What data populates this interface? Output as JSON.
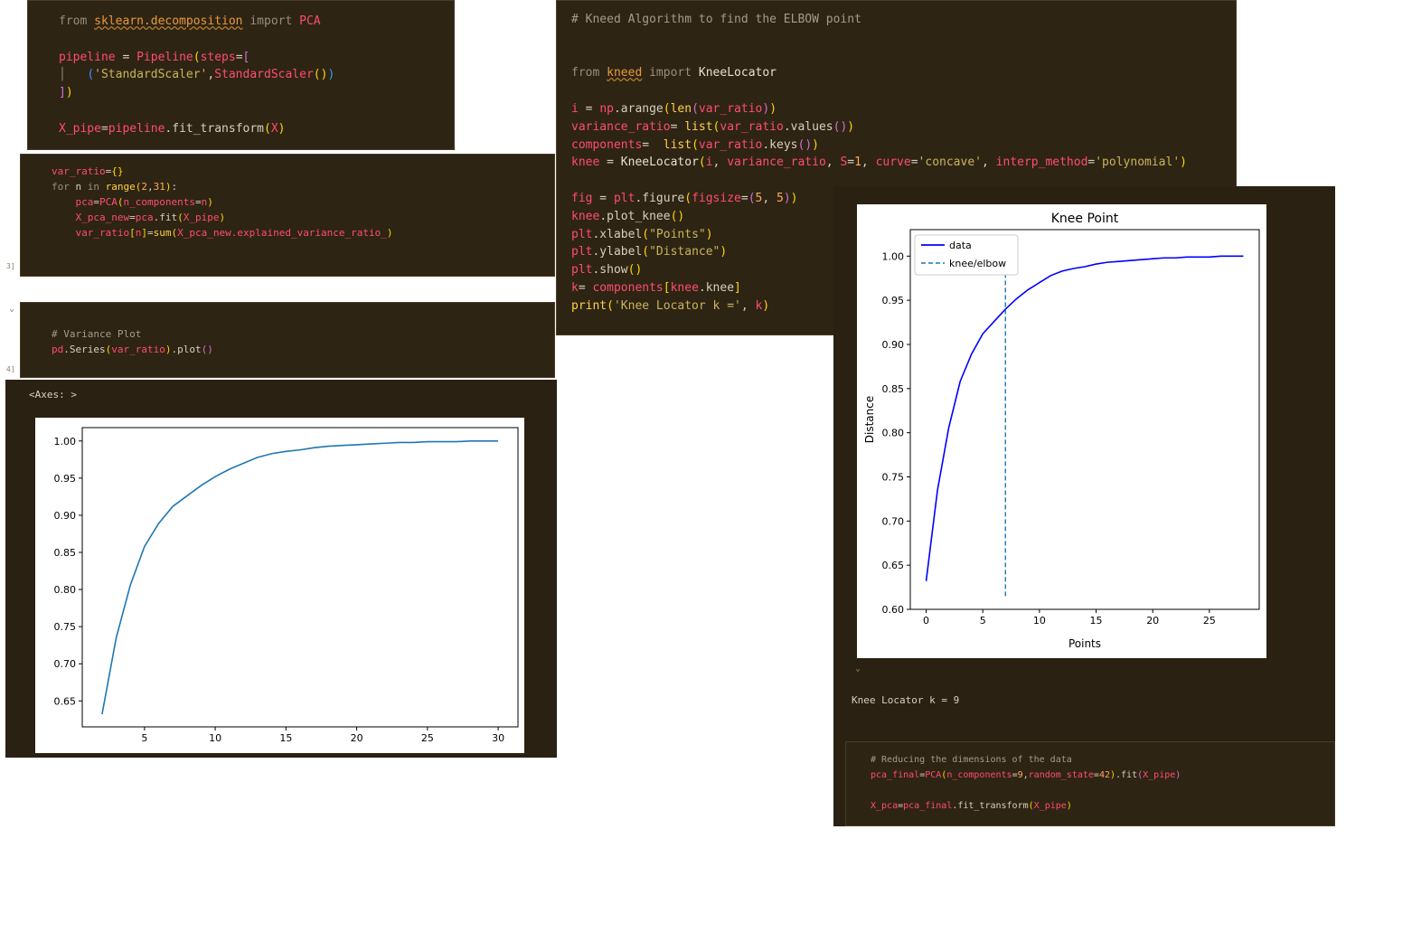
{
  "cells": {
    "pca_import": [
      [
        [
          "from ",
          "kw"
        ],
        [
          "sklearn.decomposition",
          "mod"
        ],
        [
          " import ",
          "kw"
        ],
        [
          "PCA",
          "var"
        ]
      ],
      [],
      [
        [
          "pipeline",
          "var"
        ],
        [
          " = ",
          "plain"
        ],
        [
          "Pipeline",
          "var"
        ],
        [
          "(",
          "br1"
        ],
        [
          "steps",
          "var"
        ],
        [
          "=",
          "plain"
        ],
        [
          "[",
          "br2"
        ]
      ],
      [
        [
          "│   ",
          "kw"
        ],
        [
          "(",
          "br3"
        ],
        [
          "'StandardScaler'",
          "str"
        ],
        [
          ",",
          "plain"
        ],
        [
          "StandardScaler",
          "var"
        ],
        [
          "(",
          "br1"
        ],
        [
          ")",
          "br1"
        ],
        [
          ")",
          "br3"
        ]
      ],
      [
        [
          "]",
          "br2"
        ],
        [
          ")",
          "br1"
        ]
      ],
      [],
      [
        [
          "X_pipe",
          "var"
        ],
        [
          "=",
          "plain"
        ],
        [
          "pipeline",
          "var"
        ],
        [
          ".fit_transform",
          "plain"
        ],
        [
          "(",
          "br1"
        ],
        [
          "X",
          "var"
        ],
        [
          ")",
          "br1"
        ]
      ]
    ],
    "var_ratio_loop": [
      [
        [
          "var_ratio",
          "var"
        ],
        [
          "=",
          "plain"
        ],
        [
          "{}",
          "br1"
        ]
      ],
      [
        [
          "for ",
          "kw"
        ],
        [
          "n ",
          "plain"
        ],
        [
          "in ",
          "kw"
        ],
        [
          "range",
          "fn"
        ],
        [
          "(",
          "br1"
        ],
        [
          "2",
          "num"
        ],
        [
          ",",
          "plain"
        ],
        [
          "31",
          "num"
        ],
        [
          ")",
          "br1"
        ],
        [
          ":",
          "plain"
        ]
      ],
      [
        [
          "    ",
          "plain"
        ],
        [
          "pca",
          "var"
        ],
        [
          "=",
          "plain"
        ],
        [
          "PCA",
          "var"
        ],
        [
          "(",
          "br1"
        ],
        [
          "n_components",
          "var"
        ],
        [
          "=",
          "plain"
        ],
        [
          "n",
          "var"
        ],
        [
          ")",
          "br1"
        ]
      ],
      [
        [
          "    ",
          "plain"
        ],
        [
          "X_pca_new",
          "var"
        ],
        [
          "=",
          "plain"
        ],
        [
          "pca",
          "var"
        ],
        [
          ".fit",
          "plain"
        ],
        [
          "(",
          "br1"
        ],
        [
          "X_pipe",
          "var"
        ],
        [
          ")",
          "br1"
        ]
      ],
      [
        [
          "    ",
          "plain"
        ],
        [
          "var_ratio",
          "var"
        ],
        [
          "[",
          "br1"
        ],
        [
          "n",
          "var"
        ],
        [
          "]",
          "br1"
        ],
        [
          "=",
          "plain"
        ],
        [
          "sum",
          "fn"
        ],
        [
          "(",
          "br1"
        ],
        [
          "X_pca_new",
          "var"
        ],
        [
          ".explained_variance_ratio_",
          "var"
        ],
        [
          ")",
          "br1"
        ]
      ]
    ],
    "kneed": [
      [
        [
          "# Kneed Algorithm to find the ELBOW point",
          "cmt"
        ]
      ],
      [],
      [],
      [
        [
          "from ",
          "kw"
        ],
        [
          "kneed",
          "mod"
        ],
        [
          " import ",
          "kw"
        ],
        [
          "KneeLocator",
          "pm"
        ]
      ],
      [],
      [
        [
          "i",
          "var"
        ],
        [
          " = ",
          "plain"
        ],
        [
          "np",
          "var"
        ],
        [
          ".arange",
          "plain"
        ],
        [
          "(",
          "br1"
        ],
        [
          "len",
          "fn"
        ],
        [
          "(",
          "br2"
        ],
        [
          "var_ratio",
          "var"
        ],
        [
          ")",
          "br2"
        ],
        [
          ")",
          "br1"
        ]
      ],
      [
        [
          "variance_ratio",
          "var"
        ],
        [
          "= ",
          "plain"
        ],
        [
          "list",
          "fn"
        ],
        [
          "(",
          "br1"
        ],
        [
          "var_ratio",
          "var"
        ],
        [
          ".values",
          "plain"
        ],
        [
          "(",
          "br2"
        ],
        [
          ")",
          "br2"
        ],
        [
          ")",
          "br1"
        ]
      ],
      [
        [
          "components",
          "var"
        ],
        [
          "=  ",
          "plain"
        ],
        [
          "list",
          "fn"
        ],
        [
          "(",
          "br1"
        ],
        [
          "var_ratio",
          "var"
        ],
        [
          ".keys",
          "plain"
        ],
        [
          "(",
          "br2"
        ],
        [
          ")",
          "br2"
        ],
        [
          ")",
          "br1"
        ]
      ],
      [
        [
          "knee",
          "var"
        ],
        [
          " = ",
          "plain"
        ],
        [
          "KneeLocator",
          "pm"
        ],
        [
          "(",
          "br1"
        ],
        [
          "i",
          "var"
        ],
        [
          ", ",
          "plain"
        ],
        [
          "variance_ratio",
          "var"
        ],
        [
          ", ",
          "plain"
        ],
        [
          "S",
          "var"
        ],
        [
          "=",
          "plain"
        ],
        [
          "1",
          "num"
        ],
        [
          ", ",
          "plain"
        ],
        [
          "curve",
          "var"
        ],
        [
          "=",
          "plain"
        ],
        [
          "'concave'",
          "str"
        ],
        [
          ", ",
          "plain"
        ],
        [
          "interp_method",
          "var"
        ],
        [
          "=",
          "plain"
        ],
        [
          "'polynomial'",
          "str"
        ],
        [
          ")",
          "br1"
        ]
      ],
      [],
      [
        [
          "fig",
          "var"
        ],
        [
          " = ",
          "plain"
        ],
        [
          "plt",
          "var"
        ],
        [
          ".figure",
          "plain"
        ],
        [
          "(",
          "br1"
        ],
        [
          "figsize",
          "var"
        ],
        [
          "=",
          "plain"
        ],
        [
          "(",
          "br2"
        ],
        [
          "5",
          "num"
        ],
        [
          ", ",
          "plain"
        ],
        [
          "5",
          "num"
        ],
        [
          ")",
          "br2"
        ],
        [
          ")",
          "br1"
        ]
      ],
      [
        [
          "knee",
          "var"
        ],
        [
          ".plot_knee",
          "plain"
        ],
        [
          "(",
          "br1"
        ],
        [
          ")",
          "br1"
        ]
      ],
      [
        [
          "plt",
          "var"
        ],
        [
          ".xlabel",
          "plain"
        ],
        [
          "(",
          "br1"
        ],
        [
          "\"Points\"",
          "str"
        ],
        [
          ")",
          "br1"
        ]
      ],
      [
        [
          "plt",
          "var"
        ],
        [
          ".ylabel",
          "plain"
        ],
        [
          "(",
          "br1"
        ],
        [
          "\"Distance\"",
          "str"
        ],
        [
          ")",
          "br1"
        ]
      ],
      [
        [
          "plt",
          "var"
        ],
        [
          ".show",
          "plain"
        ],
        [
          "(",
          "br1"
        ],
        [
          ")",
          "br1"
        ]
      ],
      [
        [
          "k",
          "var"
        ],
        [
          "= ",
          "plain"
        ],
        [
          "components",
          "var"
        ],
        [
          "[",
          "br1"
        ],
        [
          "knee",
          "var"
        ],
        [
          ".knee",
          "plain"
        ],
        [
          "]",
          "br1"
        ]
      ],
      [
        [
          "print",
          "fn"
        ],
        [
          "(",
          "br1"
        ],
        [
          "'Knee Locator k ='",
          "str"
        ],
        [
          ", ",
          "plain"
        ],
        [
          "k",
          "var"
        ],
        [
          ")",
          "br1"
        ]
      ]
    ],
    "variance_plot": [
      [
        [
          "# Variance Plot",
          "cmt"
        ]
      ],
      [
        [
          "pd",
          "var"
        ],
        [
          ".Series",
          "plain"
        ],
        [
          "(",
          "br1"
        ],
        [
          "var_ratio",
          "var"
        ],
        [
          ")",
          "br1"
        ],
        [
          ".plot",
          "plain"
        ],
        [
          "(",
          "br2"
        ],
        [
          ")",
          "br2"
        ]
      ]
    ],
    "reduce": [
      [
        [
          "# Reducing the dimensions of the data",
          "cmt"
        ]
      ],
      [
        [
          "pca_final",
          "var"
        ],
        [
          "=",
          "plain"
        ],
        [
          "PCA",
          "var"
        ],
        [
          "(",
          "br1"
        ],
        [
          "n_components",
          "var"
        ],
        [
          "=",
          "plain"
        ],
        [
          "9",
          "num"
        ],
        [
          ",",
          "plain"
        ],
        [
          "random_state",
          "var"
        ],
        [
          "=",
          "plain"
        ],
        [
          "42",
          "num"
        ],
        [
          ")",
          "br1"
        ],
        [
          ".fit",
          "plain"
        ],
        [
          "(",
          "br2"
        ],
        [
          "X_pipe",
          "var"
        ],
        [
          ")",
          "br2"
        ]
      ],
      [],
      [
        [
          "X_pca",
          "var"
        ],
        [
          "=",
          "plain"
        ],
        [
          "pca_final",
          "var"
        ],
        [
          ".fit_transform",
          "plain"
        ],
        [
          "(",
          "br1"
        ],
        [
          "X_pipe",
          "var"
        ],
        [
          ")",
          "br1"
        ]
      ]
    ]
  },
  "outputs": {
    "axes_repr": "<Axes: >",
    "knee_locator": "Knee Locator k = 9"
  },
  "gutter_marks": {
    "var_loop": "3]",
    "variance": "4]",
    "chevron": "⌄",
    "tick": "⌄"
  },
  "colors": {
    "cell_bg": "#2e2414",
    "variable": "#ff4d6d",
    "function": "#ffd24a",
    "string": "#c9b45a",
    "comment": "#a89b86",
    "keyword": "#9a8e7e",
    "variance_line": "#1f77b4",
    "knee_data_line": "#0000ff",
    "knee_elbow_line": "#1f77b4"
  },
  "chart_data": [
    {
      "type": "line",
      "title": "",
      "xlabel": "",
      "ylabel": "",
      "xlim": [
        0.6,
        31.4
      ],
      "ylim": [
        0.615,
        1.018
      ],
      "xticks": [
        5,
        10,
        15,
        20,
        25,
        30
      ],
      "yticks": [
        0.65,
        0.7,
        0.75,
        0.8,
        0.85,
        0.9,
        0.95,
        1.0
      ],
      "grid": false,
      "x": [
        2,
        3,
        4,
        5,
        6,
        7,
        8,
        9,
        10,
        11,
        12,
        13,
        14,
        15,
        16,
        17,
        18,
        19,
        20,
        21,
        22,
        23,
        24,
        25,
        26,
        27,
        28,
        29,
        30
      ],
      "values": [
        0.632,
        0.735,
        0.806,
        0.858,
        0.889,
        0.912,
        0.926,
        0.94,
        0.952,
        0.962,
        0.97,
        0.978,
        0.983,
        0.986,
        0.988,
        0.991,
        0.993,
        0.994,
        0.995,
        0.996,
        0.997,
        0.998,
        0.998,
        0.999,
        0.999,
        0.999,
        1.0,
        1.0,
        1.0
      ]
    },
    {
      "type": "line",
      "title": "Knee Point",
      "xlabel": "Points",
      "ylabel": "Distance",
      "xlim": [
        -1.4,
        29.4
      ],
      "ylim": [
        0.6,
        1.03
      ],
      "xticks": [
        0,
        5,
        10,
        15,
        20,
        25
      ],
      "yticks": [
        0.6,
        0.65,
        0.7,
        0.75,
        0.8,
        0.85,
        0.9,
        0.95,
        1.0
      ],
      "grid": false,
      "legend": "top-left",
      "series": [
        {
          "name": "data",
          "x": [
            0,
            1,
            2,
            3,
            4,
            5,
            6,
            7,
            8,
            9,
            10,
            11,
            12,
            13,
            14,
            15,
            16,
            17,
            18,
            19,
            20,
            21,
            22,
            23,
            24,
            25,
            26,
            27,
            28
          ],
          "values": [
            0.632,
            0.735,
            0.806,
            0.858,
            0.889,
            0.912,
            0.926,
            0.94,
            0.952,
            0.962,
            0.97,
            0.978,
            0.983,
            0.986,
            0.988,
            0.991,
            0.993,
            0.994,
            0.995,
            0.996,
            0.997,
            0.998,
            0.998,
            0.999,
            0.999,
            0.999,
            1.0,
            1.0,
            1.0
          ]
        },
        {
          "name": "knee/elbow",
          "x": [
            7,
            7
          ],
          "values": [
            0.615,
            1.018
          ]
        }
      ]
    }
  ]
}
